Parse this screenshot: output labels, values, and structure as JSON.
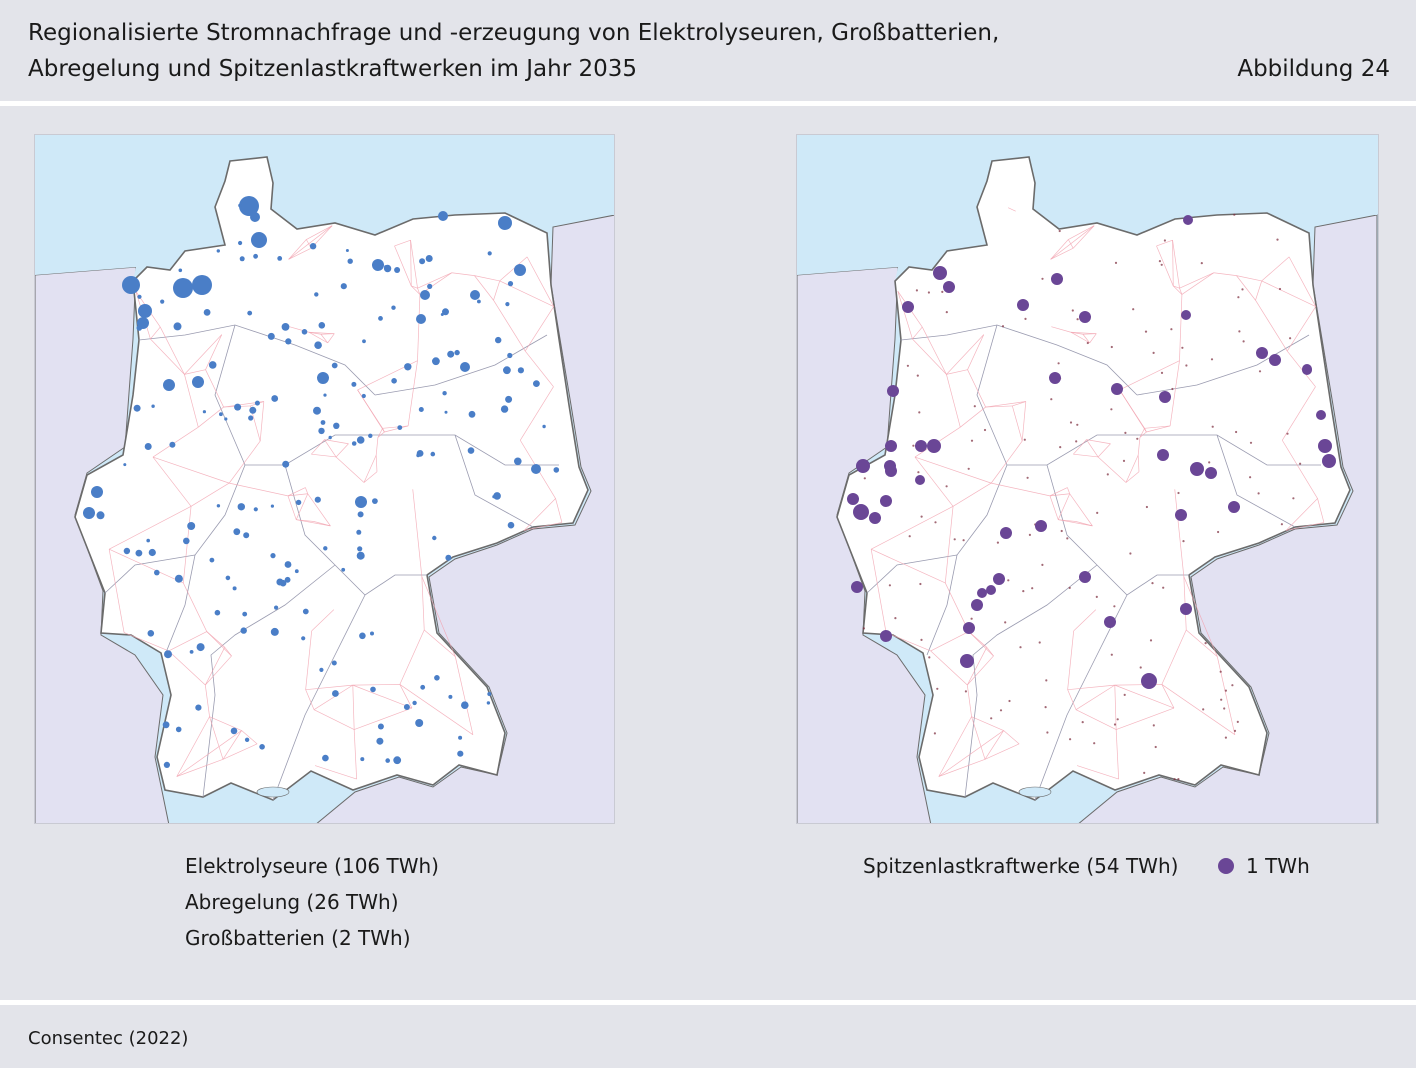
{
  "figure": {
    "title_line1": "Regionalisierte Stromnachfrage und -erzeugung von Elektrolyseuren, Großbatterien,",
    "title_line2": "Abregelung und Spitzenlastkraftwerken im Jahr 2035",
    "number": "Abbildung 24",
    "source": "Consentec (2022)"
  },
  "colors": {
    "background": "#e3e4ea",
    "sea": "#cfe9f8",
    "neighbors": "#e2e1f2",
    "land": "#ffffff",
    "border": "#6b6b6b",
    "grid_lines": "#f2a3b0",
    "electrolyser": "#4a7ec7",
    "peaker": "#6a4696"
  },
  "map_left": {
    "legend": [
      "Elektrolyseure (106 TWh)",
      "Abregelung (26 TWh)",
      "Großbatterien (2 TWh)"
    ]
  },
  "map_right": {
    "legend": "Spitzenlastkraftwerke (54 TWh)",
    "scale_label": "1 TWh"
  }
}
